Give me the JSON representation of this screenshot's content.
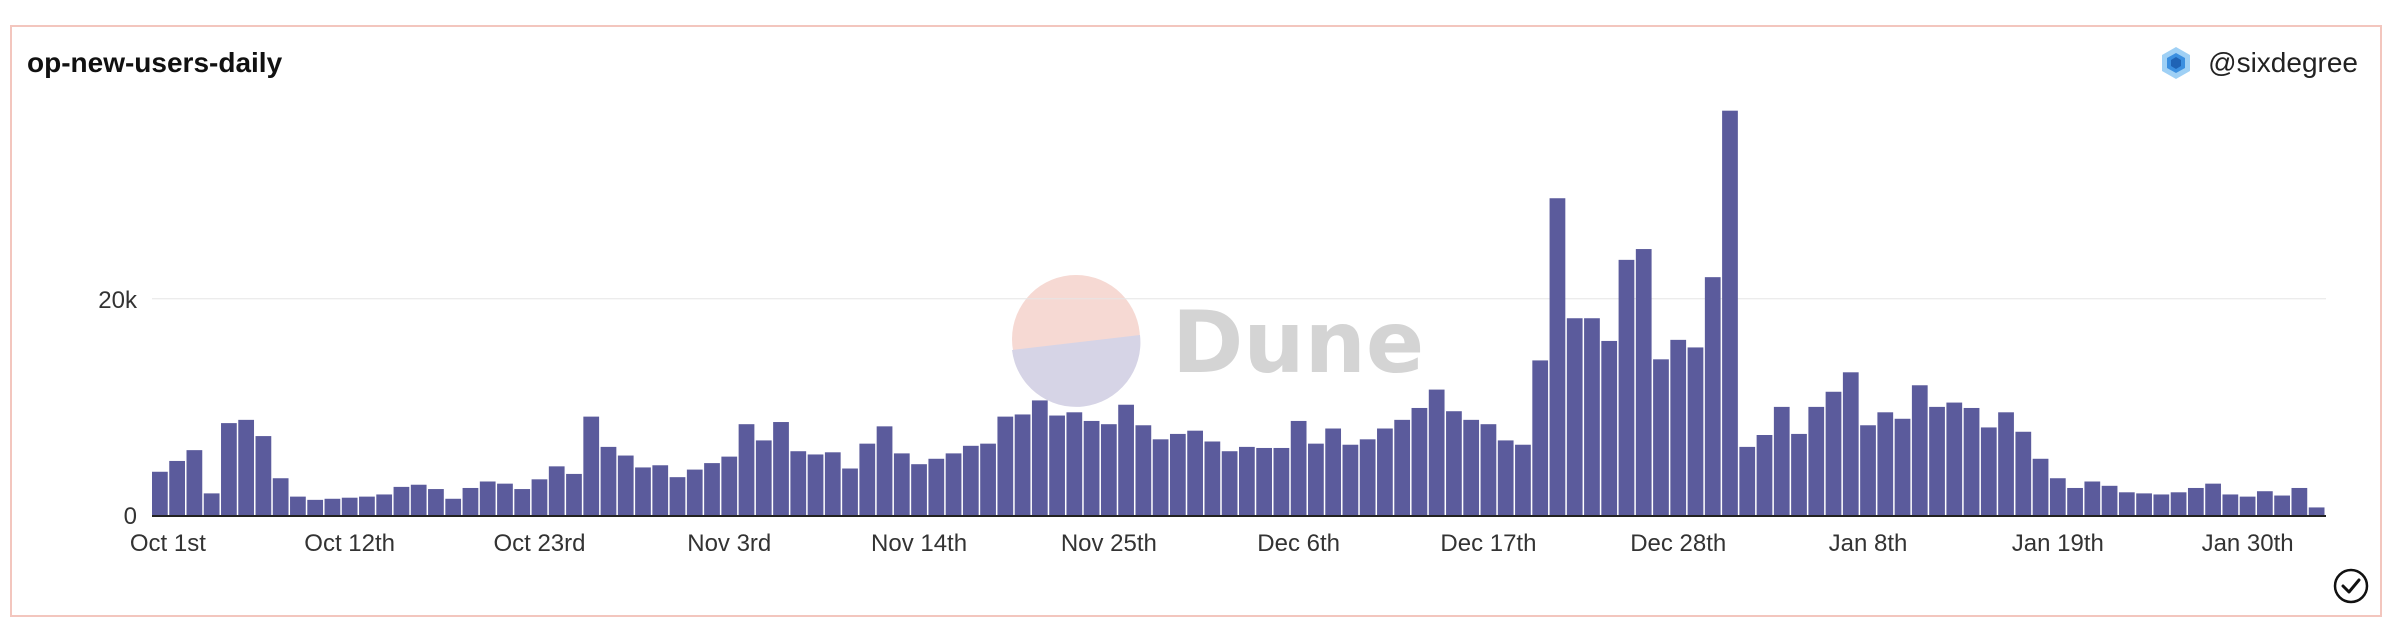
{
  "header": {
    "title": "op-new-users-daily",
    "author": "@sixdegree"
  },
  "watermark": {
    "text": "Dune"
  },
  "colors": {
    "bar": "#5b5b9c",
    "border": "#f3c6be",
    "grid": "#e6e6e6",
    "axis": "#333333"
  },
  "icons": {
    "avatar": "cube-cluster-icon",
    "status": "check-circle-icon"
  },
  "chart_data": {
    "type": "bar",
    "title": "op-new-users-daily",
    "xlabel": "",
    "ylabel": "",
    "ylim": [
      0,
      37000
    ],
    "yticks": [
      {
        "value": 0,
        "label": "0"
      },
      {
        "value": 20000,
        "label": "20k"
      }
    ],
    "grid": "horizontal",
    "x_tick_labels": [
      "Oct 1st",
      "Oct 12th",
      "Oct 23rd",
      "Nov 3rd",
      "Nov 14th",
      "Nov 25th",
      "Dec 6th",
      "Dec 17th",
      "Dec 28th",
      "Jan 8th",
      "Jan 19th",
      "Jan 30th"
    ],
    "x_tick_interval_days": 11,
    "categories": [
      "Oct 1st",
      "Oct 2nd",
      "Oct 3rd",
      "Oct 4th",
      "Oct 5th",
      "Oct 6th",
      "Oct 7th",
      "Oct 8th",
      "Oct 9th",
      "Oct 10th",
      "Oct 11th",
      "Oct 12th",
      "Oct 13th",
      "Oct 14th",
      "Oct 15th",
      "Oct 16th",
      "Oct 17th",
      "Oct 18th",
      "Oct 19th",
      "Oct 20th",
      "Oct 21st",
      "Oct 22nd",
      "Oct 23rd",
      "Oct 24th",
      "Oct 25th",
      "Oct 26th",
      "Oct 27th",
      "Oct 28th",
      "Oct 29th",
      "Oct 30th",
      "Oct 31st",
      "Nov 1st",
      "Nov 2nd",
      "Nov 3rd",
      "Nov 4th",
      "Nov 5th",
      "Nov 6th",
      "Nov 7th",
      "Nov 8th",
      "Nov 9th",
      "Nov 10th",
      "Nov 11th",
      "Nov 12th",
      "Nov 13th",
      "Nov 14th",
      "Nov 15th",
      "Nov 16th",
      "Nov 17th",
      "Nov 18th",
      "Nov 19th",
      "Nov 20th",
      "Nov 21st",
      "Nov 22nd",
      "Nov 23rd",
      "Nov 24th",
      "Nov 25th",
      "Nov 26th",
      "Nov 27th",
      "Nov 28th",
      "Nov 29th",
      "Nov 30th",
      "Dec 1st",
      "Dec 2nd",
      "Dec 3rd",
      "Dec 4th",
      "Dec 5th",
      "Dec 6th",
      "Dec 7th",
      "Dec 8th",
      "Dec 9th",
      "Dec 10th",
      "Dec 11th",
      "Dec 12th",
      "Dec 13th",
      "Dec 14th",
      "Dec 15th",
      "Dec 16th",
      "Dec 17th",
      "Dec 18th",
      "Dec 19th",
      "Dec 20th",
      "Dec 21st",
      "Dec 22nd",
      "Dec 23rd",
      "Dec 24th",
      "Dec 25th",
      "Dec 26th",
      "Dec 27th",
      "Dec 28th",
      "Dec 29th",
      "Dec 30th",
      "Dec 31st",
      "Jan 1st",
      "Jan 2nd",
      "Jan 3rd",
      "Jan 4th",
      "Jan 5th",
      "Jan 6th",
      "Jan 7th",
      "Jan 8th",
      "Jan 9th",
      "Jan 10th",
      "Jan 11th",
      "Jan 12th",
      "Jan 13th",
      "Jan 14th",
      "Jan 15th",
      "Jan 16th",
      "Jan 17th",
      "Jan 18th",
      "Jan 19th",
      "Jan 20th",
      "Jan 21st",
      "Jan 22nd",
      "Jan 23rd",
      "Jan 24th",
      "Jan 25th",
      "Jan 26th",
      "Jan 27th",
      "Jan 28th",
      "Jan 29th",
      "Jan 30th",
      "Jan 31st",
      "Feb 1st",
      "Feb 2nd",
      "Feb 3rd"
    ],
    "values": [
      4000,
      5000,
      6000,
      2000,
      8500,
      8800,
      7300,
      3400,
      1700,
      1400,
      1500,
      1600,
      1700,
      1900,
      2600,
      2800,
      2400,
      1500,
      2500,
      3100,
      2900,
      2400,
      3300,
      4500,
      3800,
      9100,
      6300,
      5500,
      4400,
      4600,
      3500,
      4200,
      4800,
      5400,
      8400,
      6900,
      8600,
      5900,
      5600,
      5800,
      4300,
      6600,
      8200,
      5700,
      4700,
      5200,
      5700,
      6400,
      6600,
      9100,
      9300,
      10600,
      9200,
      9500,
      8700,
      8400,
      10200,
      8300,
      7000,
      7500,
      7800,
      6800,
      5900,
      6300,
      6200,
      6200,
      8700,
      6600,
      8000,
      6500,
      7000,
      8000,
      8800,
      9900,
      11600,
      9600,
      8800,
      8400,
      6900,
      6500,
      14300,
      29300,
      18200,
      18200,
      16100,
      23600,
      24600,
      14400,
      16200,
      15500,
      22000,
      37400,
      6300,
      7400,
      10000,
      7500,
      10000,
      11400,
      13200,
      8300,
      9500,
      8900,
      12000,
      10000,
      10400,
      9900,
      8100,
      9500,
      7700,
      5200,
      3400,
      2500,
      3100,
      2700,
      2100,
      2000,
      1900,
      2100,
      2500,
      2900,
      1900,
      1700,
      2200,
      1800,
      2500,
      700
    ]
  }
}
